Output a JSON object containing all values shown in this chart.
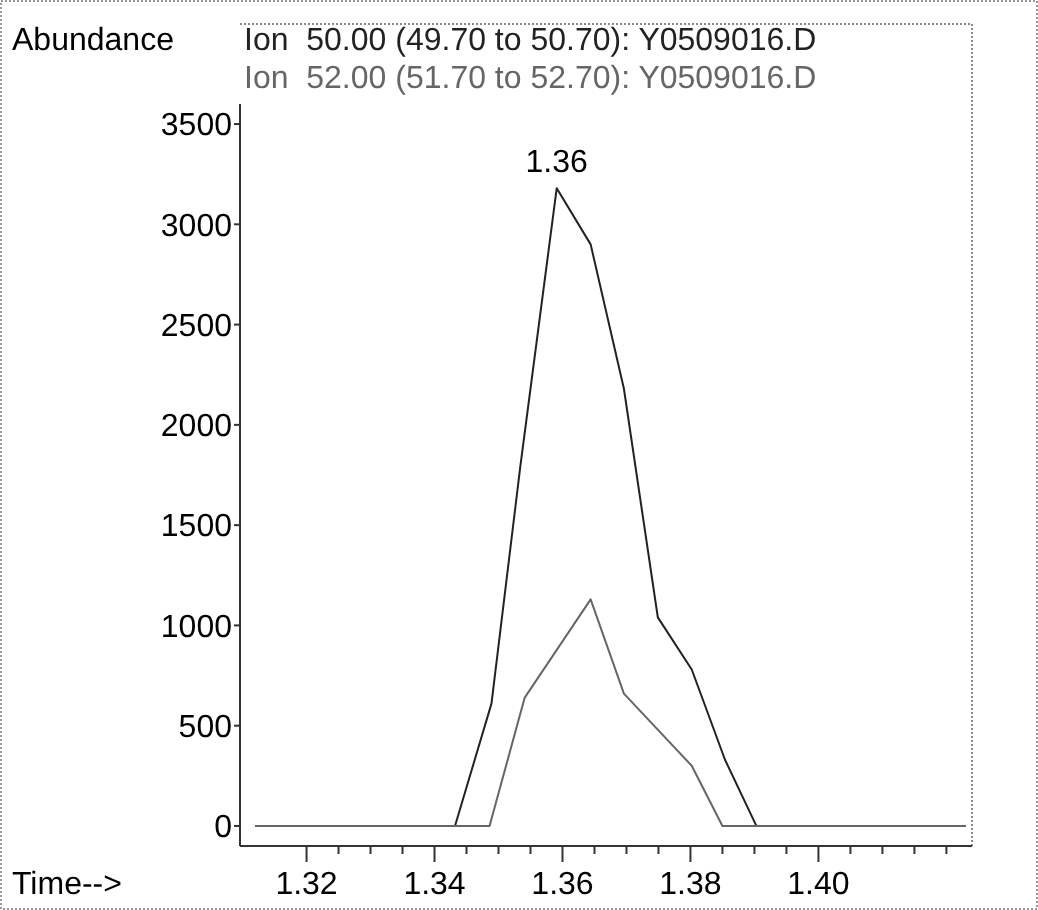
{
  "chart_data": {
    "type": "line",
    "ylabel": "Abundance",
    "xlabel": "Time-->",
    "legend": "top",
    "marker": "none",
    "line_style": "solid",
    "grid": false,
    "xlim": [
      1.3096,
      1.424
    ],
    "xticks": [
      1.32,
      {
        "value": 1.325,
        "label": null
      },
      {
        "value": 1.33,
        "label": null
      },
      {
        "value": 1.335,
        "label": null
      },
      1.34,
      {
        "value": 1.345,
        "label": null
      },
      {
        "value": 1.35,
        "label": null
      },
      {
        "value": 1.355,
        "label": null
      },
      1.36,
      {
        "value": 1.365,
        "label": null
      },
      {
        "value": 1.37,
        "label": null
      },
      {
        "value": 1.375,
        "label": null
      },
      1.38,
      {
        "value": 1.385,
        "label": null
      },
      {
        "value": 1.39,
        "label": null
      },
      {
        "value": 1.395,
        "label": null
      },
      {
        "value": 1.4,
        "label": "1.40"
      },
      {
        "value": 1.405,
        "label": null
      },
      {
        "value": 1.41,
        "label": null
      },
      {
        "value": 1.415,
        "label": null
      },
      {
        "value": 1.42,
        "label": null
      }
    ],
    "ylim": [
      -100,
      3600
    ],
    "yticks": [
      0,
      500,
      1000,
      1500,
      2000,
      2500,
      3000,
      3500
    ],
    "annotations": [
      {
        "text": "1.36",
        "x": 1.3591,
        "y": 3180
      }
    ],
    "series": [
      {
        "name": "Ion  50.00 (49.70 to 50.70): Y0509016.D",
        "color": "#222222",
        "x": [
          1.312,
          1.3432,
          1.3489,
          1.3534,
          1.3591,
          1.3644,
          1.3696,
          1.3749,
          1.3802,
          1.3854,
          1.3903,
          1.423
        ],
        "values": [
          0,
          0,
          610,
          1790,
          3180,
          2900,
          2180,
          1040,
          780,
          330,
          0,
          0
        ]
      },
      {
        "name": "Ion  52.00 (51.70 to 52.70): Y0509016.D",
        "color": "#666666",
        "x": [
          1.312,
          1.3486,
          1.3541,
          1.3644,
          1.3696,
          1.3802,
          1.385,
          1.423
        ],
        "values": [
          0,
          0,
          640,
          1130,
          660,
          300,
          0,
          0
        ]
      }
    ]
  }
}
